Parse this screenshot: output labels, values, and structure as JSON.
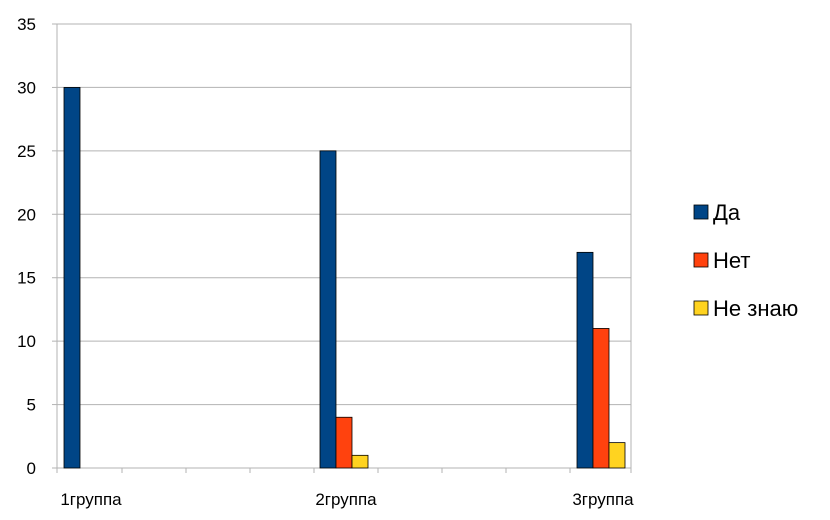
{
  "chart_data": {
    "type": "bar",
    "categories": [
      "1группа",
      "2группа",
      "3группа"
    ],
    "series": [
      {
        "name": "Да",
        "values": [
          30,
          25,
          17
        ],
        "color": "#004586"
      },
      {
        "name": "Нет",
        "values": [
          0,
          4,
          11
        ],
        "color": "#FF420E"
      },
      {
        "name": "Не знаю",
        "values": [
          0,
          1,
          2
        ],
        "color": "#FFD320"
      }
    ],
    "ylim": [
      0,
      35
    ],
    "yticks": [
      "0",
      "5",
      "10",
      "15",
      "20",
      "25",
      "30",
      "35"
    ],
    "grid": true,
    "legend": "right",
    "title": "",
    "xlabel": "",
    "ylabel": ""
  }
}
